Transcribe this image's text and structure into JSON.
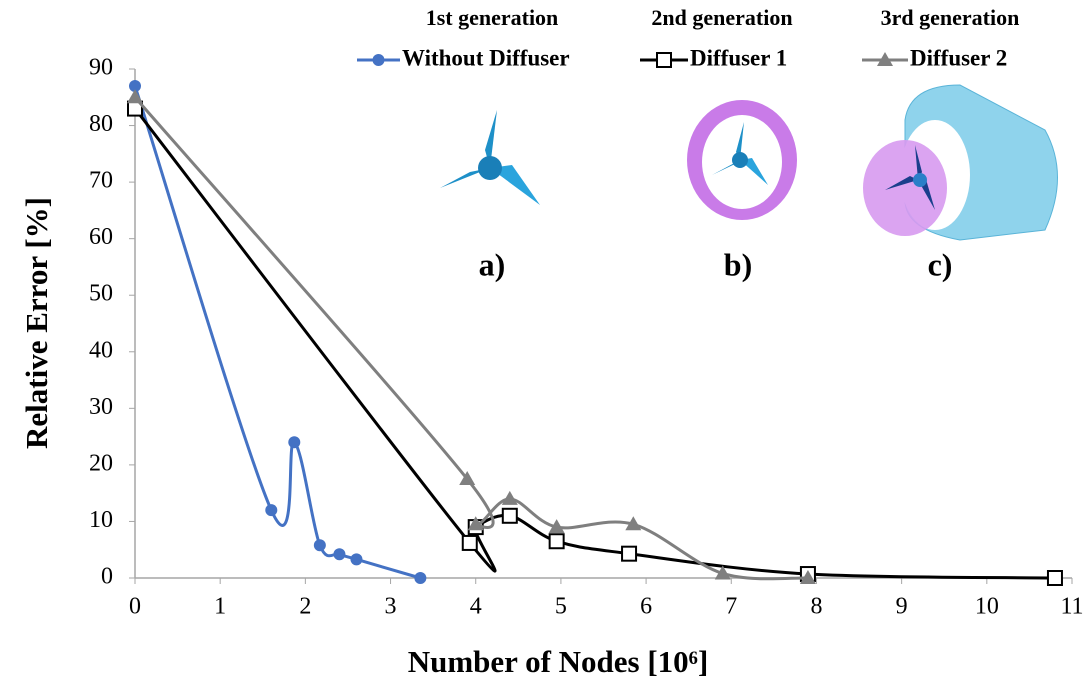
{
  "chart_data": {
    "type": "line",
    "xlabel": "Number of Nodes [10⁶]",
    "ylabel": "Relative Error [%]",
    "annotations": [
      "1st generation",
      "2nd generation",
      "3rd generation"
    ],
    "panel_labels": [
      "a)",
      "b)",
      "c)"
    ],
    "xlim": [
      0,
      11
    ],
    "xticks": [
      0,
      1,
      2,
      3,
      4,
      5,
      6,
      7,
      8,
      9,
      10,
      11
    ],
    "ylim": [
      0,
      90
    ],
    "yticks": [
      0,
      10,
      20,
      30,
      40,
      50,
      60,
      70,
      80,
      90
    ],
    "grid": false,
    "legend": "top",
    "series": [
      {
        "name": "Without Diffuser",
        "color": "#4472c4",
        "marker": "circle",
        "x": [
          0,
          1.6,
          1.87,
          2.17,
          2.4,
          2.6,
          3.35
        ],
        "values": [
          87,
          12,
          24,
          5.8,
          4.2,
          3.3,
          0
        ]
      },
      {
        "name": "Diffuser 1",
        "color": "#000000",
        "marker": "square",
        "x": [
          0,
          3.93,
          4.0,
          4.4,
          4.95,
          5.8,
          7.9,
          10.8
        ],
        "values": [
          83,
          6.2,
          9,
          11,
          6.5,
          4.3,
          0.7,
          0
        ]
      },
      {
        "name": "Diffuser 2",
        "color": "#7f7f7f",
        "marker": "triangle",
        "x": [
          0,
          3.9,
          4.0,
          4.4,
          4.95,
          5.85,
          6.9,
          7.9
        ],
        "values": [
          85,
          17.5,
          9.5,
          14,
          9,
          9.5,
          0.8,
          0
        ]
      }
    ]
  }
}
